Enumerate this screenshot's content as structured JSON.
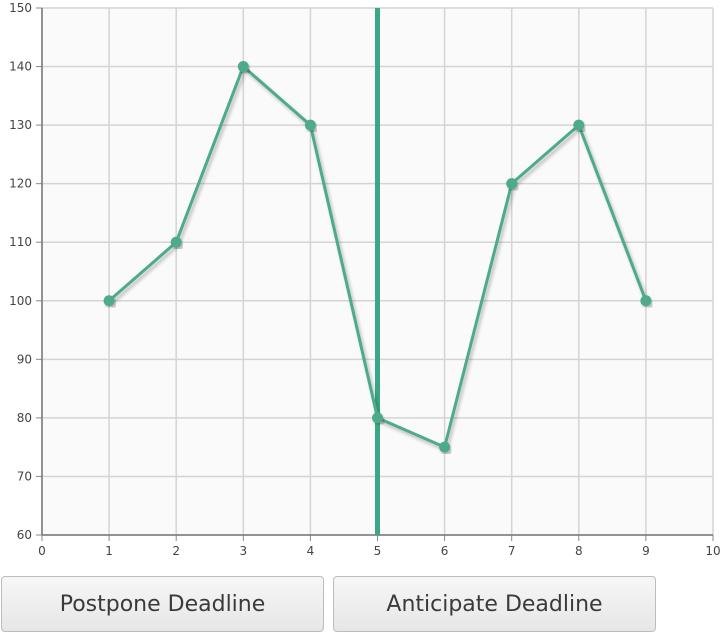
{
  "chart_data": {
    "type": "line",
    "x": [
      1,
      2,
      3,
      4,
      5,
      6,
      7,
      8,
      9
    ],
    "series": [
      {
        "values": [
          100,
          110,
          140,
          130,
          80,
          75,
          120,
          130,
          100
        ]
      }
    ],
    "xlim": [
      0,
      10
    ],
    "ylim": [
      60,
      150
    ],
    "xticks": [
      "0",
      "1",
      "2",
      "3",
      "4",
      "5",
      "6",
      "7",
      "8",
      "9",
      "10"
    ],
    "yticks": [
      "60",
      "70",
      "80",
      "90",
      "100",
      "110",
      "120",
      "130",
      "140",
      "150"
    ],
    "deadline_x": 5,
    "grid": true,
    "color": "#4daa8a",
    "deadline_color": "#3aa888"
  },
  "buttons": {
    "postpone_label": "Postpone Deadline",
    "anticipate_label": "Anticipate Deadline"
  }
}
